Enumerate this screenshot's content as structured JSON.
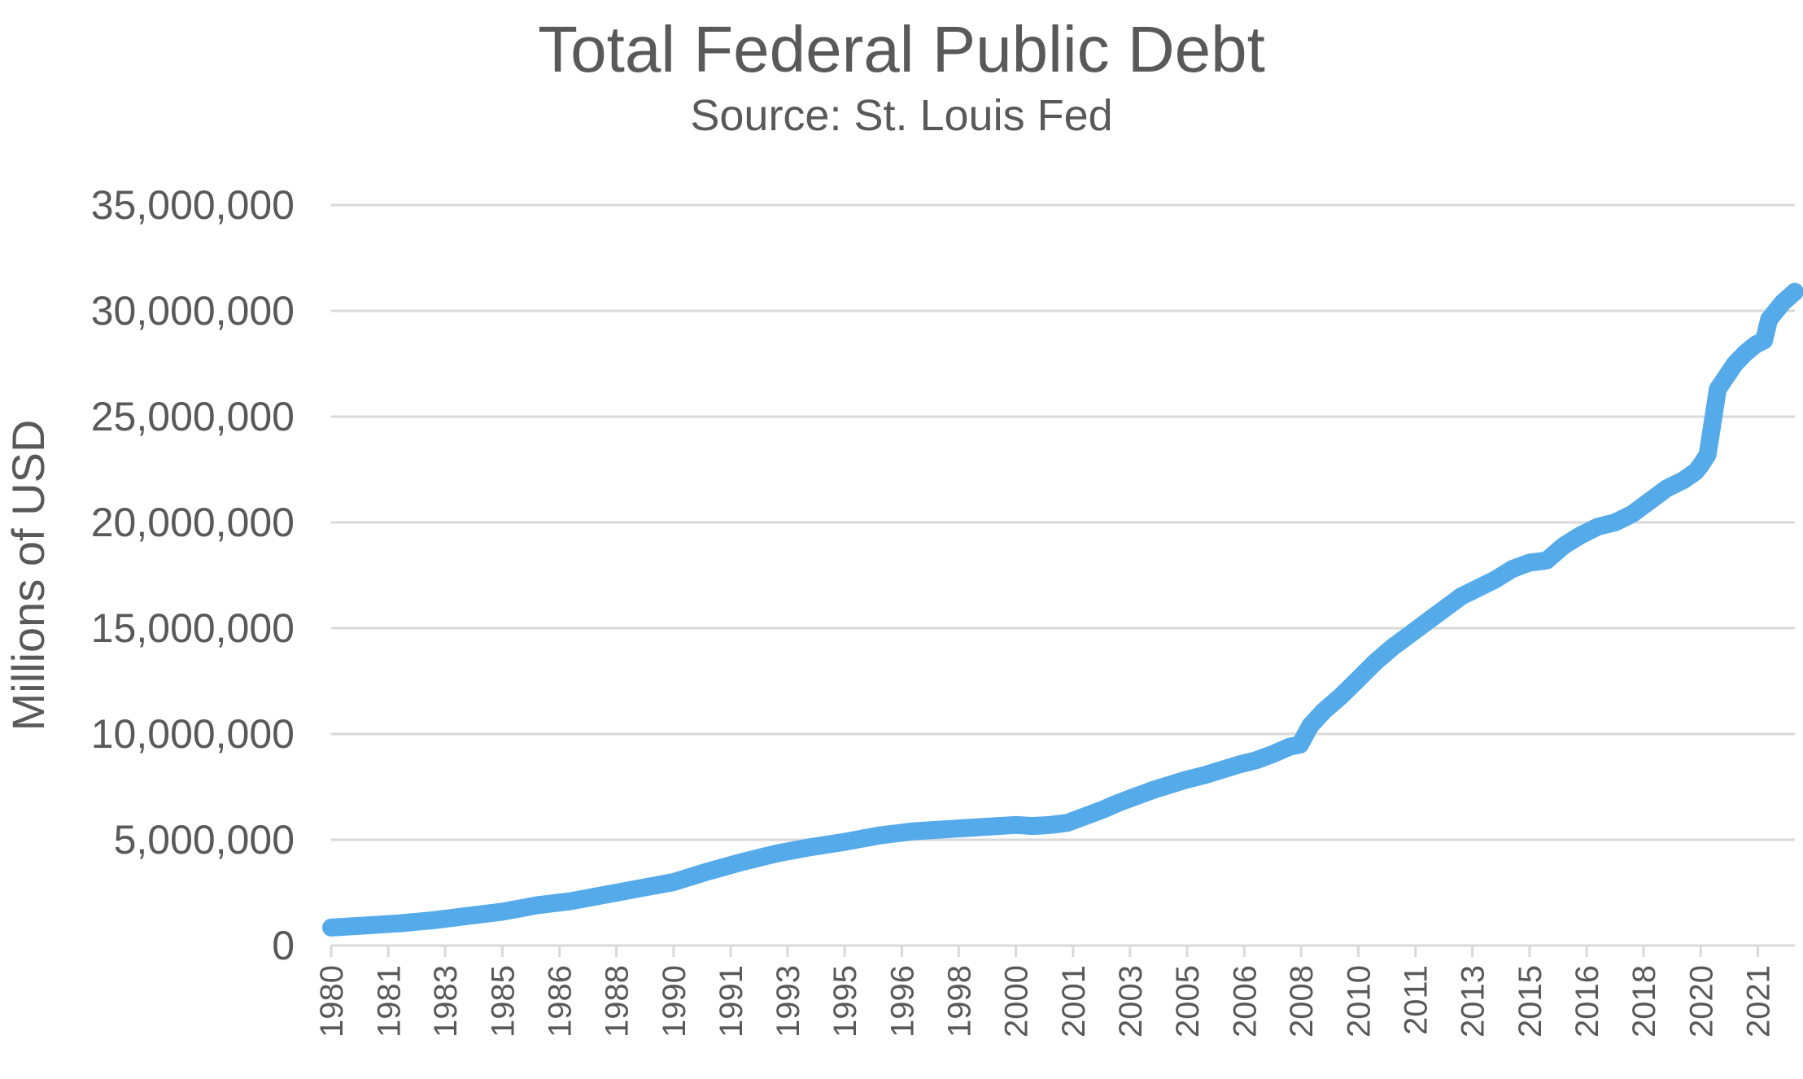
{
  "chart_data": {
    "type": "line",
    "title": "Total Federal Public Debt",
    "subtitle": "Source: St. Louis Fed",
    "xlabel": "",
    "ylabel": "Millions of USD",
    "x_tick_labels": [
      "1980",
      "1981",
      "1983",
      "1985",
      "1986",
      "1988",
      "1990",
      "1991",
      "1993",
      "1995",
      "1996",
      "1998",
      "2000",
      "2001",
      "2003",
      "2005",
      "2006",
      "2008",
      "2010",
      "2011",
      "2013",
      "2015",
      "2016",
      "2018",
      "2020",
      "2021"
    ],
    "x_tick_values": [
      1980.0,
      1981.67,
      1983.33,
      1985.0,
      1986.67,
      1988.33,
      1990.0,
      1991.67,
      1993.33,
      1995.0,
      1996.67,
      1998.33,
      2000.0,
      2001.67,
      2003.33,
      2005.0,
      2006.67,
      2008.33,
      2010.0,
      2011.67,
      2013.33,
      2015.0,
      2016.67,
      2018.33,
      2020.0,
      2021.67
    ],
    "y_tick_labels": [
      "0",
      "5,000,000",
      "10,000,000",
      "15,000,000",
      "20,000,000",
      "25,000,000",
      "30,000,000",
      "35,000,000"
    ],
    "y_tick_values": [
      0,
      5000000,
      10000000,
      15000000,
      20000000,
      25000000,
      30000000,
      35000000
    ],
    "xlim": [
      1980.0,
      2022.75
    ],
    "ylim": [
      0,
      35000000
    ],
    "grid": true,
    "legend": "none",
    "series": [
      {
        "color": "#55aaea",
        "x": [
          1980.0,
          1981.0,
          1982.0,
          1983.0,
          1984.0,
          1985.0,
          1986.0,
          1987.0,
          1988.0,
          1989.0,
          1990.0,
          1991.0,
          1992.0,
          1993.0,
          1994.0,
          1995.0,
          1996.0,
          1997.0,
          1998.0,
          1999.0,
          2000.0,
          2000.5,
          2001.0,
          2001.5,
          2002.0,
          2002.5,
          2003.0,
          2003.5,
          2004.0,
          2004.5,
          2005.0,
          2005.5,
          2006.0,
          2006.5,
          2007.0,
          2007.5,
          2008.0,
          2008.3,
          2008.6,
          2009.0,
          2009.5,
          2010.0,
          2010.5,
          2011.0,
          2011.5,
          2012.0,
          2012.5,
          2013.0,
          2013.5,
          2014.0,
          2014.5,
          2015.0,
          2015.5,
          2016.0,
          2016.5,
          2017.0,
          2017.5,
          2018.0,
          2018.5,
          2019.0,
          2019.5,
          2019.85,
          2020.0,
          2020.2,
          2020.5,
          2021.0,
          2021.3,
          2021.6,
          2021.85,
          2022.0,
          2022.4,
          2022.75
        ],
        "y": [
          850000,
          950000,
          1050000,
          1200000,
          1400000,
          1600000,
          1900000,
          2100000,
          2400000,
          2700000,
          3000000,
          3500000,
          3950000,
          4350000,
          4650000,
          4900000,
          5200000,
          5400000,
          5500000,
          5600000,
          5700000,
          5650000,
          5700000,
          5800000,
          6100000,
          6400000,
          6750000,
          7050000,
          7350000,
          7600000,
          7850000,
          8050000,
          8300000,
          8550000,
          8750000,
          9050000,
          9400000,
          9500000,
          10400000,
          11100000,
          11800000,
          12600000,
          13400000,
          14100000,
          14700000,
          15300000,
          15900000,
          16500000,
          16900000,
          17300000,
          17800000,
          18100000,
          18200000,
          18900000,
          19400000,
          19800000,
          20000000,
          20400000,
          21000000,
          21600000,
          22000000,
          22400000,
          22700000,
          23200000,
          26300000,
          27500000,
          28000000,
          28400000,
          28600000,
          29600000,
          30400000,
          30900000
        ]
      }
    ]
  }
}
